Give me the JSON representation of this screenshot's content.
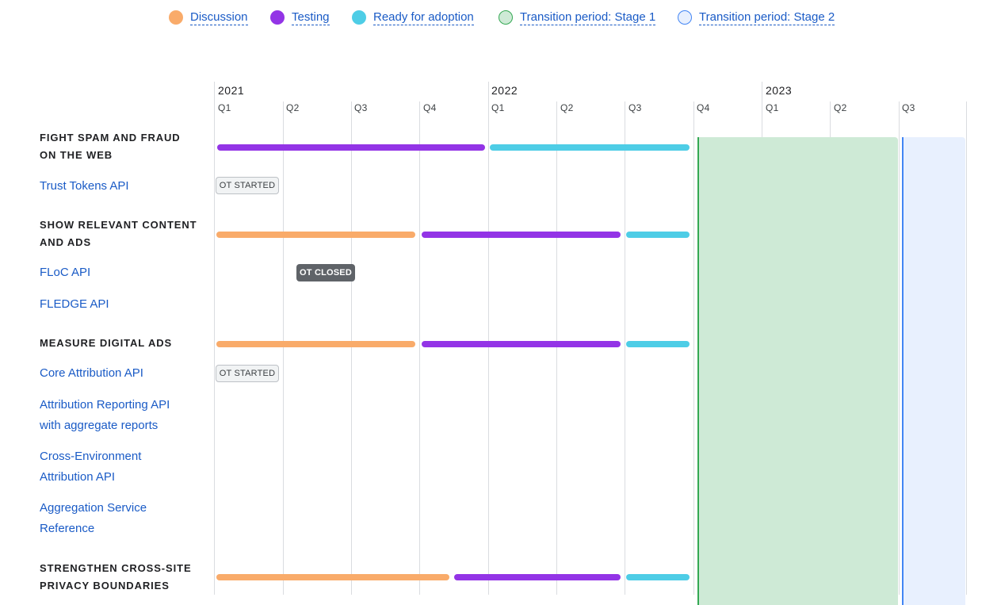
{
  "legend": [
    {
      "label": "Discussion",
      "color": "#f9ab6a"
    },
    {
      "label": "Testing",
      "color": "#9334e6"
    },
    {
      "label": "Ready for adoption",
      "color": "#4ecde6"
    },
    {
      "label": "Transition period: Stage 1",
      "color": "#ceead6"
    },
    {
      "label": "Transition period: Stage 2",
      "color": "#e8f0fe"
    }
  ],
  "timeline": {
    "years": [
      "2021",
      "2022",
      "2023"
    ],
    "quarters": [
      "Q1",
      "Q2",
      "Q3",
      "Q4",
      "Q1",
      "Q2",
      "Q3",
      "Q4",
      "Q1",
      "Q2",
      "Q3"
    ]
  },
  "groups": [
    {
      "title": "FIGHT SPAM AND FRAUD ON THE WEB"
    },
    {
      "title": "SHOW RELEVANT CONTENT AND ADS"
    },
    {
      "title": "MEASURE DIGITAL ADS"
    },
    {
      "title": "STRENGTHEN CROSS-SITE PRIVACY BOUNDARIES"
    }
  ],
  "apis": [
    {
      "label": "Trust Tokens API",
      "badge": "OT STARTED"
    },
    {
      "label": "FLoC API",
      "badge": "OT CLOSED"
    },
    {
      "label": "FLEDGE API"
    },
    {
      "label": "Core Attribution API",
      "badge": "OT STARTED"
    },
    {
      "label": "Attribution Reporting API with aggregate reports"
    },
    {
      "label": "Cross-Environment Attribution API"
    },
    {
      "label": "Aggregation Service Reference"
    }
  ]
}
